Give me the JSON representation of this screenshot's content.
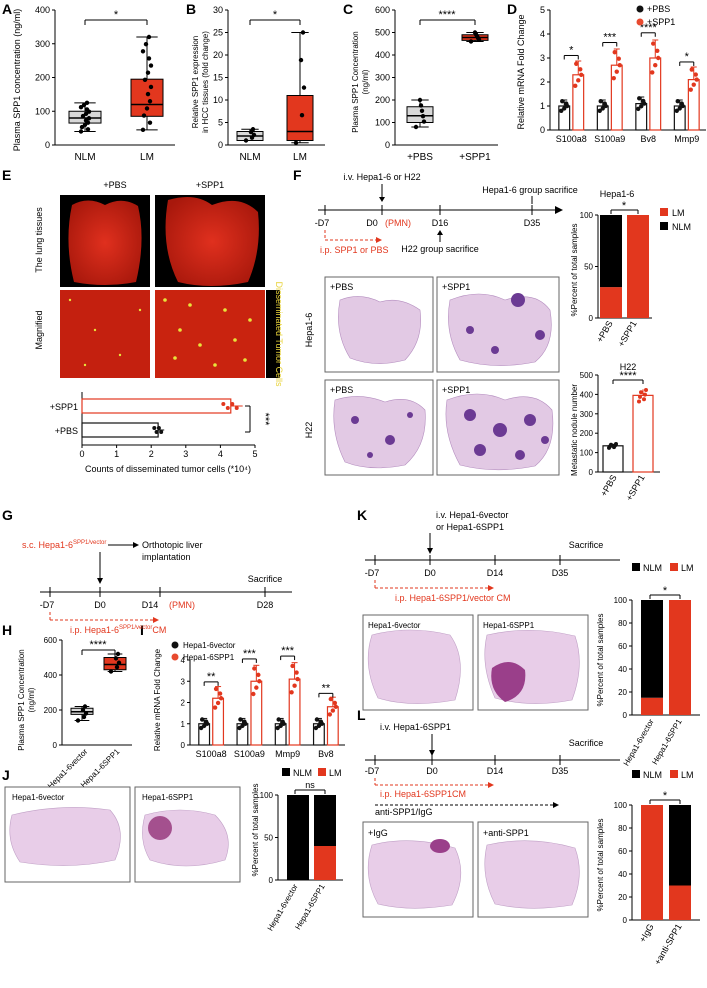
{
  "panels": {
    "A": {
      "letter": "A",
      "ylabel": "Plasma SPP1 concentration (ng/ml)",
      "yticks": [
        0,
        100,
        200,
        300,
        400
      ],
      "groups": [
        "NLM",
        "LM"
      ],
      "sig": "*"
    },
    "B": {
      "letter": "B",
      "ylabel": "Relative SPP1 expression in HCC tissues (fold change)",
      "yticks": [
        0,
        5,
        10,
        15,
        20,
        25,
        30
      ],
      "groups": [
        "NLM",
        "LM"
      ],
      "sig": "*"
    },
    "C": {
      "letter": "C",
      "ylabel": "Plasma SPP1 Concentration (ng/ml)",
      "yticks": [
        0,
        100,
        200,
        300,
        400,
        500,
        600
      ],
      "groups": [
        "+PBS",
        "+SPP1"
      ],
      "sig": "****"
    },
    "D": {
      "letter": "D",
      "ylabel": "Relative mRNA Fold Change",
      "yticks": [
        0,
        1,
        2,
        3,
        4,
        5
      ],
      "genes": [
        "S100a8",
        "S100a9",
        "Bv8",
        "Mmp9"
      ],
      "legend": [
        "+PBS",
        "+SPP1"
      ],
      "sigs": [
        "*",
        "***",
        "****",
        "*"
      ]
    },
    "E": {
      "letter": "E",
      "col1": "+PBS",
      "col2": "+SPP1",
      "row1": "The lung tissues",
      "row2": "Magnified",
      "side": "Disseminated Tumor Cells",
      "xlabel": "Counts of disseminated tumor cells (*10⁴)",
      "xticks": [
        0,
        1,
        2,
        3,
        4,
        5
      ],
      "bars": [
        "+SPP1",
        "+PBS"
      ],
      "sig": "***"
    },
    "F": {
      "letter": "F",
      "iv": "i.v. Hepa1-6 or H22",
      "hepa_sac": "Hepa1-6 group sacrifice",
      "h22_sac": "H22 group sacrifice",
      "tp": [
        "-D7",
        "D0",
        "(PMN)",
        "D16",
        "D35"
      ],
      "ip": "i.p. SPP1 or PBS",
      "row1": "Hepa1-6",
      "row2": "H22",
      "img": [
        "+PBS",
        "+SPP1",
        "+PBS",
        "+SPP1"
      ],
      "bar_title": "Hepa1-6",
      "bar_ylabel": "%Percent of total samples",
      "legend": [
        "LM",
        "NLM"
      ],
      "bar_groups": [
        "+PBS",
        "+SPP1"
      ],
      "bar_sig": "*",
      "dot_title": "H22",
      "dot_ylabel": "Metastatic nodule number",
      "dot_groups": [
        "+PBS",
        "+SPP1"
      ],
      "dot_sig": "****",
      "dot_yticks": [
        0,
        100,
        200,
        300,
        400,
        500
      ]
    },
    "G": {
      "letter": "G",
      "sc": "s.c. Hepa1-6",
      "sc_sup": "SPP1/vector",
      "ortho1": "Orthotopic liver",
      "ortho2": "implantation",
      "sac": "Sacrifice",
      "tp": [
        "-D7",
        "D0",
        "D14",
        "(PMN)",
        "D28"
      ],
      "ip": "i.p. Hepa1-6",
      "ip_sup": "SPP1/vector",
      "ip_tail": "CM"
    },
    "H": {
      "letter": "H",
      "ylabel": "Plasma SPP1 Concentration (ng/ml)",
      "yticks": [
        0,
        200,
        400,
        600
      ],
      "groups": [
        "Hepa1-6vector",
        "Hepa1-6SPP1"
      ],
      "sig": "****"
    },
    "I": {
      "letter": "I",
      "ylabel": "Relative mRNA Fold Change",
      "yticks": [
        0,
        1,
        2,
        3,
        4
      ],
      "genes": [
        "S100a8",
        "S100a9",
        "Mmp9",
        "Bv8"
      ],
      "legend": [
        "Hepa1-6vector",
        "Hepa1-6SPP1"
      ],
      "sigs": [
        "**",
        "***",
        "***",
        "**"
      ]
    },
    "J": {
      "letter": "J",
      "img": [
        "Hepa1-6vector",
        "Hepa1-6SPP1"
      ],
      "ylabel": "%Percent of total samples",
      "legend": [
        "NLM",
        "LM"
      ],
      "groups": [
        "Hepa1-6vector",
        "Hepa1-6SPP1"
      ],
      "sig": "ns",
      "yticks": [
        0,
        50,
        100
      ]
    },
    "K": {
      "letter": "K",
      "iv1": "i.v. Hepa1-6vector",
      "iv2": "or Hepa1-6SPP1",
      "sac": "Sacrifice",
      "tp": [
        "-D7",
        "D0",
        "D14",
        "D35"
      ],
      "ip": "i.p. Hepa1-6SPP1/vector CM",
      "img": [
        "Hepa1-6vector",
        "Hepa1-6SPP1"
      ],
      "ylabel": "%Percent of total samples",
      "legend": [
        "NLM",
        "LM"
      ],
      "groups": [
        "Hepa1-6vector",
        "Hepa1-6SPP1"
      ],
      "sig": "*",
      "yticks": [
        0,
        20,
        40,
        60,
        80,
        100
      ]
    },
    "L": {
      "letter": "L",
      "iv": "i.v. Hepa1-6SPP1",
      "sac": "Sacrifice",
      "tp": [
        "-D7",
        "D0",
        "D14",
        "D35"
      ],
      "ip": "i.p. Hepa1-6SPP1CM",
      "anti": "anti-SPP1/IgG",
      "img": [
        "+IgG",
        "+anti-SPP1"
      ],
      "ylabel": "%Percent of total samples",
      "legend": [
        "NLM",
        "LM"
      ],
      "groups": [
        "+IgG",
        "+anti-SPP1"
      ],
      "sig": "*",
      "yticks": [
        0,
        20,
        40,
        60,
        80,
        100
      ]
    }
  },
  "chart_data": [
    {
      "type": "box",
      "panel": "A",
      "categories": [
        "NLM",
        "LM"
      ],
      "median": [
        80,
        120
      ],
      "q1": [
        65,
        85
      ],
      "q3": [
        100,
        195
      ],
      "min": [
        40,
        45
      ],
      "max": [
        125,
        320
      ],
      "ylim": [
        0,
        400
      ]
    },
    {
      "type": "box",
      "panel": "B",
      "categories": [
        "NLM",
        "LM"
      ],
      "median": [
        2,
        3
      ],
      "q1": [
        1,
        1
      ],
      "q3": [
        3,
        11
      ],
      "min": [
        1,
        0.5
      ],
      "max": [
        3.5,
        25
      ],
      "ylim": [
        0,
        30
      ]
    },
    {
      "type": "box",
      "panel": "C",
      "categories": [
        "+PBS",
        "+SPP1"
      ],
      "median": [
        130,
        478
      ],
      "q1": [
        100,
        465
      ],
      "q3": [
        170,
        490
      ],
      "min": [
        80,
        460
      ],
      "max": [
        200,
        500
      ],
      "ylim": [
        0,
        600
      ]
    },
    {
      "type": "bar",
      "panel": "D",
      "categories": [
        "S100a8",
        "S100a9",
        "Bv8",
        "Mmp9"
      ],
      "series": [
        {
          "name": "+PBS",
          "values": [
            1.0,
            1.0,
            1.1,
            1.0
          ]
        },
        {
          "name": "+SPP1",
          "values": [
            2.3,
            2.7,
            3.0,
            2.1
          ]
        }
      ],
      "ylim": [
        0,
        5
      ]
    },
    {
      "type": "bar",
      "panel": "E",
      "categories": [
        "+SPP1",
        "+PBS"
      ],
      "values": [
        4.3,
        2.2
      ],
      "xlim": [
        0,
        5
      ]
    },
    {
      "type": "bar",
      "panel": "F-Hepa1-6",
      "categories": [
        "+PBS",
        "+SPP1"
      ],
      "series": [
        {
          "name": "LM",
          "values": [
            30,
            100
          ]
        },
        {
          "name": "NLM",
          "values": [
            70,
            0
          ]
        }
      ],
      "ylim": [
        0,
        100
      ]
    },
    {
      "type": "bar",
      "panel": "F-H22",
      "categories": [
        "+PBS",
        "+SPP1"
      ],
      "values": [
        135,
        395
      ],
      "ylim": [
        0,
        500
      ]
    },
    {
      "type": "box",
      "panel": "H",
      "categories": [
        "Hepa1-6vector",
        "Hepa1-6SPP1"
      ],
      "median": [
        190,
        460
      ],
      "q1": [
        175,
        430
      ],
      "q3": [
        210,
        500
      ],
      "min": [
        140,
        420
      ],
      "max": [
        220,
        520
      ],
      "ylim": [
        0,
        600
      ]
    },
    {
      "type": "bar",
      "panel": "I",
      "categories": [
        "S100a8",
        "S100a9",
        "Mmp9",
        "Bv8"
      ],
      "series": [
        {
          "name": "Hepa1-6vector",
          "values": [
            1.0,
            1.0,
            1.0,
            1.0
          ]
        },
        {
          "name": "Hepa1-6SPP1",
          "values": [
            2.2,
            3.0,
            3.1,
            1.8
          ]
        }
      ],
      "ylim": [
        0,
        4
      ]
    },
    {
      "type": "bar",
      "panel": "J",
      "categories": [
        "Hepa1-6vector",
        "Hepa1-6SPP1"
      ],
      "series": [
        {
          "name": "NLM",
          "values": [
            100,
            60
          ]
        },
        {
          "name": "LM",
          "values": [
            0,
            40
          ]
        }
      ],
      "ylim": [
        0,
        100
      ]
    },
    {
      "type": "bar",
      "panel": "K",
      "categories": [
        "Hepa1-6vector",
        "Hepa1-6SPP1"
      ],
      "series": [
        {
          "name": "NLM",
          "values": [
            85,
            0
          ]
        },
        {
          "name": "LM",
          "values": [
            15,
            100
          ]
        }
      ],
      "ylim": [
        0,
        100
      ]
    },
    {
      "type": "bar",
      "panel": "L",
      "categories": [
        "+IgG",
        "+anti-SPP1"
      ],
      "series": [
        {
          "name": "NLM",
          "values": [
            0,
            70
          ]
        },
        {
          "name": "LM",
          "values": [
            100,
            30
          ]
        }
      ],
      "ylim": [
        0,
        100
      ]
    }
  ]
}
